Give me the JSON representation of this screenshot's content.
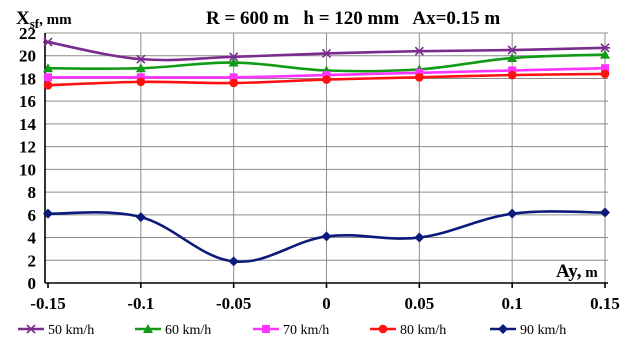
{
  "chart_data": {
    "type": "line",
    "header": {
      "ylabel": "X",
      "ylabel_sub": "sf",
      "ylabel_unit": ", mm",
      "params": "R = 600 m   h = 120 mm   Ax=0.15 m"
    },
    "xlabel": "Ay,",
    "xlabel_unit": " m",
    "x": [
      -0.15,
      -0.1,
      -0.05,
      0,
      0.05,
      0.1,
      0.15
    ],
    "x_tick_labels": [
      "-0.15",
      "-0.1",
      "-0.05",
      "0",
      "0.05",
      "0.1",
      "0.15"
    ],
    "y_ticks": [
      0,
      2,
      4,
      6,
      8,
      10,
      12,
      14,
      16,
      18,
      20,
      22
    ],
    "ylim": [
      0,
      22
    ],
    "grid": true,
    "legend_position": "bottom",
    "series": [
      {
        "name": "50 km/h",
        "color": "#7b2a8e",
        "marker": "star",
        "values": [
          21.2,
          19.7,
          19.9,
          20.2,
          20.4,
          20.5,
          20.7
        ]
      },
      {
        "name": "60 km/h",
        "color": "#119a15",
        "marker": "triangle",
        "values": [
          18.9,
          18.9,
          19.4,
          18.7,
          18.8,
          19.8,
          20.1
        ]
      },
      {
        "name": "70 km/h",
        "color": "#ff33ff",
        "marker": "square",
        "values": [
          18.1,
          18.1,
          18.1,
          18.3,
          18.5,
          18.7,
          18.9
        ]
      },
      {
        "name": "80 km/h",
        "color": "#ff1111",
        "marker": "circle",
        "values": [
          17.4,
          17.7,
          17.6,
          17.9,
          18.1,
          18.3,
          18.4
        ]
      },
      {
        "name": "90 km/h",
        "color": "#0c1a7a",
        "marker": "diamond",
        "values": [
          6.1,
          5.8,
          1.9,
          4.1,
          4.0,
          6.1,
          6.2
        ]
      }
    ]
  }
}
